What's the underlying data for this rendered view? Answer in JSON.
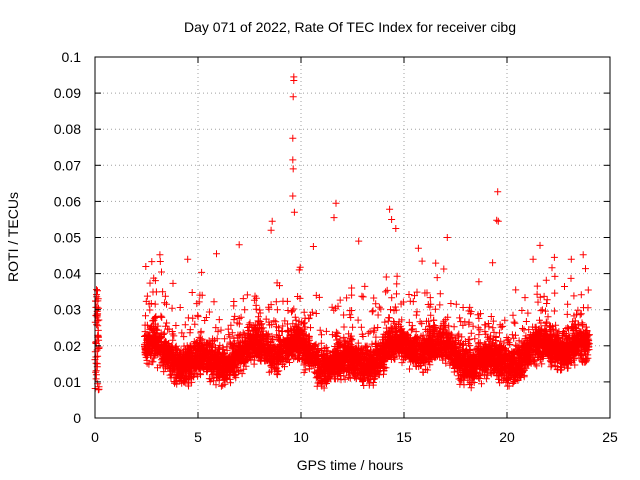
{
  "chart_data": {
    "type": "scatter",
    "title": "Day 071 of 2022, Rate Of TEC Index for receiver cibg",
    "xlabel": "GPS time / hours",
    "ylabel": "ROTI / TECUs",
    "xlim": [
      0,
      25
    ],
    "ylim": [
      0,
      0.1
    ],
    "x_ticks": [
      0,
      5,
      10,
      15,
      20,
      25
    ],
    "x_tick_labels": [
      "0",
      "5",
      "10",
      "15",
      "20",
      "25"
    ],
    "y_ticks": [
      0,
      0.01,
      0.02,
      0.03,
      0.04,
      0.05,
      0.06,
      0.07,
      0.08,
      0.09,
      0.1
    ],
    "y_tick_labels": [
      "0",
      "0.01",
      "0.02",
      "0.03",
      "0.04",
      "0.05",
      "0.06",
      "0.07",
      "0.08",
      "0.09",
      "0.1"
    ],
    "grid": true,
    "marker": "+",
    "series_color": "#ff0000",
    "coverage": [
      {
        "x_start": 0.0,
        "x_end": 0.2,
        "y_low": 0.006,
        "y_high": 0.036
      },
      {
        "x_start": 2.4,
        "x_end": 24.0,
        "y_low": 0.005,
        "y_high": 0.04
      }
    ],
    "notable_points": [
      {
        "x": 9.65,
        "y": 0.0945
      },
      {
        "x": 9.65,
        "y": 0.0935
      },
      {
        "x": 9.62,
        "y": 0.089
      },
      {
        "x": 9.6,
        "y": 0.0775
      },
      {
        "x": 9.6,
        "y": 0.0715
      },
      {
        "x": 9.62,
        "y": 0.069
      },
      {
        "x": 9.6,
        "y": 0.0615
      },
      {
        "x": 9.68,
        "y": 0.057
      },
      {
        "x": 19.55,
        "y": 0.0627
      },
      {
        "x": 19.5,
        "y": 0.0548
      },
      {
        "x": 19.58,
        "y": 0.0545
      },
      {
        "x": 14.3,
        "y": 0.0578
      },
      {
        "x": 14.4,
        "y": 0.055
      },
      {
        "x": 14.6,
        "y": 0.0525
      },
      {
        "x": 11.7,
        "y": 0.0595
      },
      {
        "x": 11.6,
        "y": 0.0555
      },
      {
        "x": 8.6,
        "y": 0.0545
      },
      {
        "x": 8.55,
        "y": 0.052
      },
      {
        "x": 3.15,
        "y": 0.0452
      },
      {
        "x": 17.1,
        "y": 0.05
      },
      {
        "x": 21.6,
        "y": 0.0478
      },
      {
        "x": 7.0,
        "y": 0.048
      },
      {
        "x": 12.8,
        "y": 0.049
      },
      {
        "x": 10.6,
        "y": 0.0475
      },
      {
        "x": 19.3,
        "y": 0.043
      },
      {
        "x": 22.3,
        "y": 0.0445
      },
      {
        "x": 23.7,
        "y": 0.0452
      },
      {
        "x": 4.5,
        "y": 0.044
      },
      {
        "x": 5.9,
        "y": 0.0455
      },
      {
        "x": 15.7,
        "y": 0.047
      }
    ]
  }
}
